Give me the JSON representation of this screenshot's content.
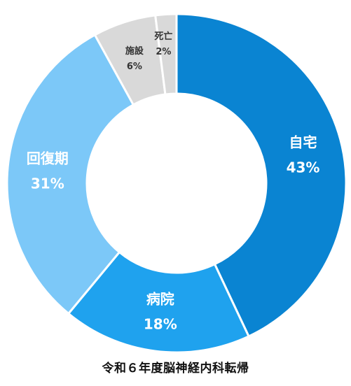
{
  "chart_data": {
    "type": "pie",
    "variant": "donut",
    "title": "令和６年度脳神経内科転帰",
    "start": "top",
    "direction": "clockwise",
    "series": [
      {
        "slices": [
          {
            "name": "自宅",
            "value": 43,
            "value_label": "43%",
            "color": "#0a84d2",
            "label_color": "#ffffff"
          },
          {
            "name": "病院",
            "value": 18,
            "value_label": "18%",
            "color": "#1fa2ee",
            "label_color": "#ffffff"
          },
          {
            "name": "回復期",
            "value": 31,
            "value_label": "31%",
            "color": "#7cc8f8",
            "label_color": "#ffffff"
          },
          {
            "name": "施設",
            "value": 6,
            "value_label": "6%",
            "color": "#d9d9d9",
            "label_color": "#333333"
          },
          {
            "name": "死亡",
            "value": 2,
            "value_label": "2%",
            "color": "#d9d9d9",
            "label_color": "#333333"
          }
        ]
      }
    ]
  }
}
